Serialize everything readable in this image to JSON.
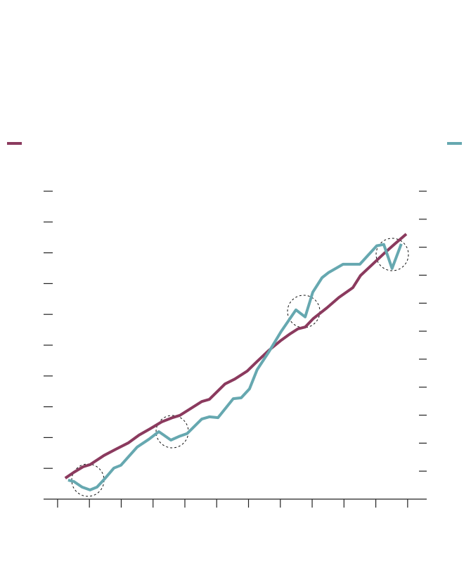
{
  "chart_data": {
    "type": "line",
    "xlim": [
      -0.44,
      11.6
    ],
    "xticks": [
      0,
      1,
      2,
      3,
      4,
      5,
      6,
      7,
      8,
      9,
      10,
      11
    ],
    "ylim": [
      0,
      10
    ],
    "yticks": [
      1,
      2,
      3,
      4,
      5,
      6,
      7,
      8,
      9,
      10
    ],
    "y2lim": [
      0,
      11
    ],
    "y2ticks": [
      1,
      2,
      3,
      4,
      5,
      6,
      7,
      8,
      9,
      10,
      11
    ],
    "series": [
      {
        "color": "#8b3a5e",
        "axis": "y",
        "x": [
          0.24,
          0.51,
          0.8,
          1.02,
          1.46,
          1.83,
          2.23,
          2.56,
          2.9,
          3.27,
          3.62,
          3.84,
          4.15,
          4.53,
          4.77,
          5.26,
          5.57,
          5.96,
          6.27,
          6.65,
          7.0,
          7.31,
          7.55,
          7.78,
          8.04,
          8.46,
          8.84,
          9.28,
          9.52,
          9.92,
          10.25,
          10.6,
          10.96
        ],
        "values": [
          0.68,
          0.87,
          1.05,
          1.12,
          1.42,
          1.62,
          1.83,
          2.08,
          2.28,
          2.51,
          2.65,
          2.72,
          2.92,
          3.17,
          3.24,
          3.74,
          3.9,
          4.16,
          4.47,
          4.84,
          5.14,
          5.37,
          5.53,
          5.59,
          5.87,
          6.21,
          6.55,
          6.87,
          7.26,
          7.65,
          7.97,
          8.29,
          8.61
        ]
      },
      {
        "color": "#66a8b0",
        "axis": "y2",
        "x": [
          0.33,
          0.51,
          0.77,
          1.02,
          1.24,
          1.5,
          1.77,
          1.99,
          2.5,
          2.87,
          3.18,
          3.31,
          3.56,
          3.82,
          4.07,
          4.53,
          4.77,
          5.04,
          5.52,
          5.77,
          6.03,
          6.27,
          6.65,
          7.02,
          7.49,
          7.78,
          8.02,
          8.31,
          8.51,
          8.97,
          9.5,
          10.03,
          10.25,
          10.51,
          10.8
        ],
        "values": [
          0.68,
          0.63,
          0.43,
          0.33,
          0.43,
          0.75,
          1.11,
          1.21,
          1.86,
          2.14,
          2.41,
          2.31,
          2.11,
          2.24,
          2.34,
          2.86,
          2.94,
          2.91,
          3.59,
          3.62,
          3.94,
          4.62,
          5.28,
          5.98,
          6.76,
          6.51,
          7.39,
          7.91,
          8.09,
          8.39,
          8.39,
          9.05,
          9.1,
          8.24,
          9.12
        ]
      }
    ]
  }
}
